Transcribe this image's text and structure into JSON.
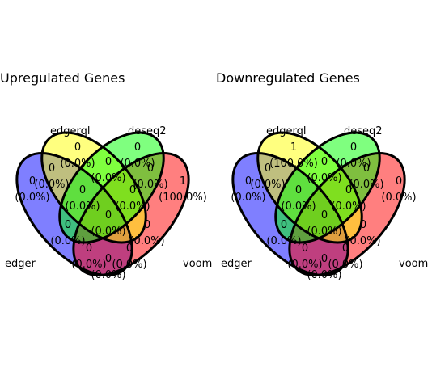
{
  "colors": {
    "edger": "#0000FF",
    "edgerql": "#FFFF00",
    "deseq2": "#00FF00",
    "voom": "#FF0000"
  },
  "venn": [
    {
      "title": "Upregulated Genes",
      "sets": {
        "edger": "edger",
        "edgerql": "edgerql",
        "deseq2": "deseq2",
        "voom": "voom"
      },
      "regions": {
        "edgerql_only": [
          "0",
          "(0.0%)"
        ],
        "deseq2_only": [
          "0",
          "(0.0%)"
        ],
        "edger_only": [
          "0",
          "(0.0%)"
        ],
        "voom_only": [
          "1",
          "(100.0%)"
        ],
        "edgerql_deseq2": [
          "0",
          "(0.0%)"
        ],
        "edger_edgerql": [
          "0",
          "(0.0%)"
        ],
        "deseq2_voom": [
          "0",
          "(0.0%)"
        ],
        "edger_edgerql_deseq2": [
          "0",
          "(0.0%)"
        ],
        "edgerql_deseq2_voom": [
          "0",
          "(0.0%)"
        ],
        "all_four": [
          "0",
          "(0.0%)"
        ],
        "edger_deseq2": [
          "0",
          "(0.0%)"
        ],
        "edgerql_voom": [
          "0",
          "(0.0%)"
        ],
        "edger_deseq2_voom": [
          "0",
          "(0.0%)"
        ],
        "edger_edgerql_voom": [
          "0",
          "(0.0%)"
        ],
        "edger_voom": [
          "0",
          "(0.0%)"
        ]
      }
    },
    {
      "title": "Downregulated Genes",
      "sets": {
        "edger": "edger",
        "edgerql": "edgerql",
        "deseq2": "deseq2",
        "voom": "voom"
      },
      "regions": {
        "edgerql_only": [
          "1",
          "(100.0%)"
        ],
        "deseq2_only": [
          "0",
          "(0.0%)"
        ],
        "edger_only": [
          "0",
          "(0.0%)"
        ],
        "voom_only": [
          "0",
          "(0.0%)"
        ],
        "edgerql_deseq2": [
          "0",
          "(0.0%)"
        ],
        "edger_edgerql": [
          "0",
          "(0.0%)"
        ],
        "deseq2_voom": [
          "0",
          "(0.0%)"
        ],
        "edger_edgerql_deseq2": [
          "0",
          "(0.0%)"
        ],
        "edgerql_deseq2_voom": [
          "0",
          "(0.0%)"
        ],
        "all_four": [
          "0",
          "(0.0%)"
        ],
        "edger_deseq2": [
          "0",
          "(0.0%)"
        ],
        "edgerql_voom": [
          "0",
          "(0.0%)"
        ],
        "edger_deseq2_voom": [
          "0",
          "(0.0%)"
        ],
        "edger_edgerql_voom": [
          "0",
          "(0.0%)"
        ],
        "edger_voom": [
          "0",
          "(0.0%)"
        ]
      }
    }
  ]
}
